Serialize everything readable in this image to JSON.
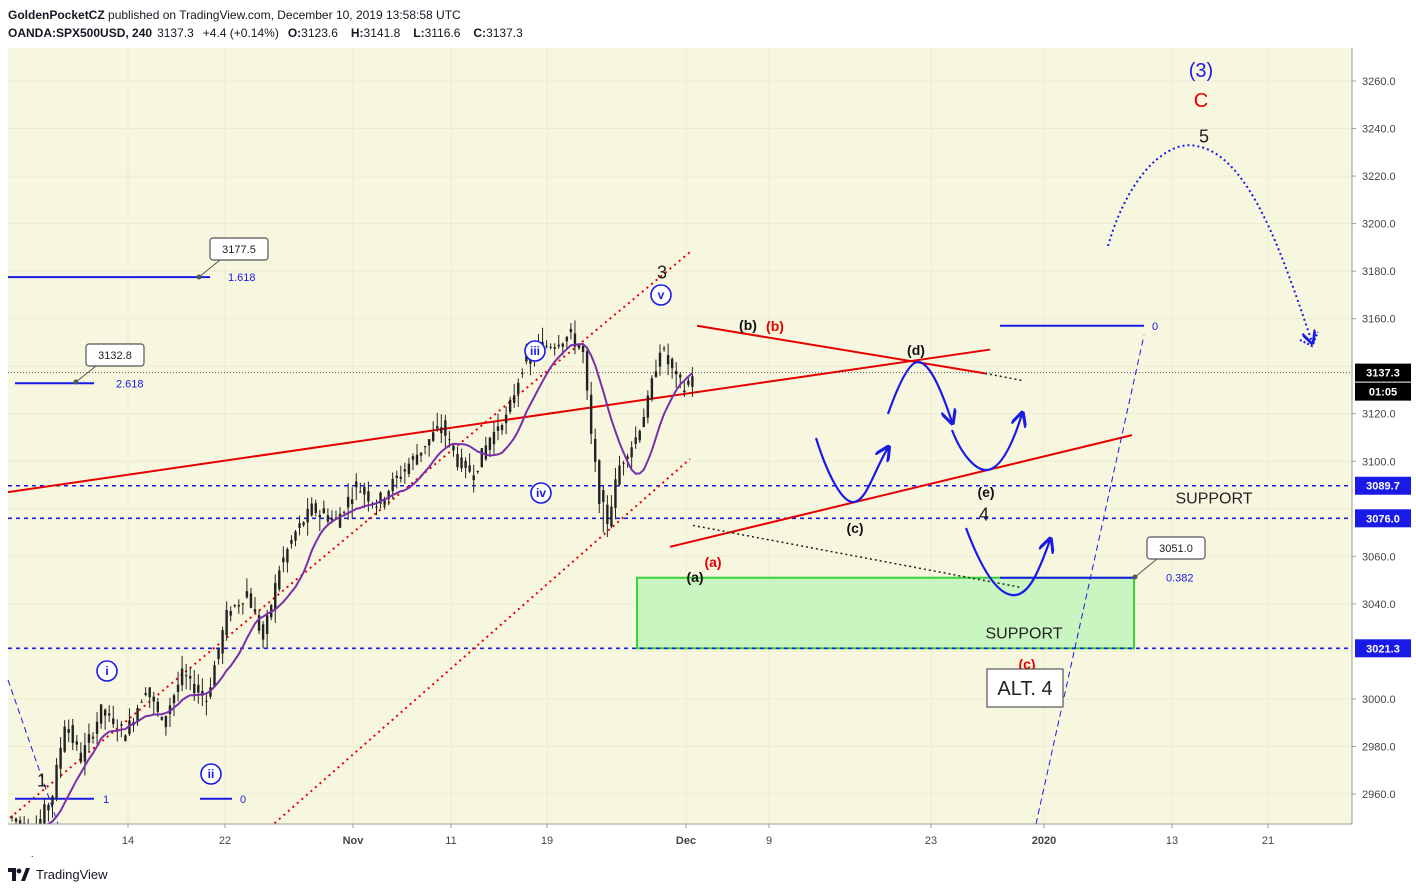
{
  "header": {
    "publisher": "GoldenPocketCZ",
    "published_text": "published on TradingView.com, December 10, 2019 13:58:58 UTC",
    "symbol": "OANDA:SPX500USD, 240",
    "last": "3137.3",
    "change": "+4.4 (+0.14%)",
    "open_label": "O:",
    "open": "3123.6",
    "high_label": "H:",
    "high": "3141.8",
    "low_label": "L:",
    "low": "3116.6",
    "close_label": "C:",
    "close": "3137.3"
  },
  "footer": {
    "brand": "TradingView",
    "logo": "tradingview-logo-icon"
  },
  "colors": {
    "background": "#f5f5dc",
    "wave_blue": "#1a1ae6",
    "red": "#e60000",
    "purple": "#7b2fa8",
    "support_fill": "#c8f5c0",
    "support_stroke": "#39d139"
  },
  "chart_data": {
    "type": "candlestick",
    "symbol": "OANDA:SPX500USD",
    "interval": "240",
    "ylim": [
      2945,
      3270
    ],
    "y_ticks": [
      2960,
      2980,
      3000,
      3020,
      3040,
      3060,
      3080,
      3100,
      3120,
      3140,
      3160,
      3180,
      3200,
      3220,
      3240,
      3260
    ],
    "y_tick_labels": [
      "2960.0",
      "2980.0",
      "3000.0",
      "",
      "3040.0",
      "3060.0",
      "",
      "3100.0",
      "3120.0",
      "",
      "3160.0",
      "3180.0",
      "3200.0",
      "3220.0",
      "3240.0",
      "3260.0"
    ],
    "x_ticks": [
      "14",
      "22",
      "Nov",
      "11",
      "19",
      "Dec",
      "9",
      "23",
      "2020",
      "13",
      "21"
    ],
    "price_tags": [
      {
        "value": 3137.3,
        "label": "3137.3",
        "style": "dark"
      },
      {
        "value": 3089.7,
        "label": "3089.7",
        "style": "blue"
      },
      {
        "value": 3076.0,
        "label": "3076.0",
        "style": "blue"
      },
      {
        "value": 3021.3,
        "label": "3021.3",
        "style": "blue"
      }
    ],
    "countdown": "01:05",
    "callouts": [
      {
        "label": "3177.5",
        "value": 3177.5
      },
      {
        "label": "3132.8",
        "value": 3132.8
      },
      {
        "label": "3051.0",
        "value": 3051.0
      }
    ],
    "fib_levels": [
      {
        "label": "1.618",
        "value": 3177.5
      },
      {
        "label": "2.618",
        "value": 3132.8
      },
      {
        "label": "0.382",
        "value": 3051.0
      },
      {
        "label": "0",
        "value": 3157.0
      },
      {
        "label": "1",
        "value": 2958.0
      },
      {
        "label": "0",
        "value": 2958.0
      }
    ],
    "horizontal_levels": [
      3089.7,
      3076.0,
      3021.3
    ],
    "support_zone": {
      "from": 3021.3,
      "to": 3051.0,
      "label": "SUPPORT"
    },
    "support_label_2": "SUPPORT",
    "wave_labels": [
      {
        "text": "(3)"
      },
      {
        "text": "C"
      },
      {
        "text": "5"
      },
      {
        "text": "3"
      },
      {
        "text": "v"
      },
      {
        "text": "iii"
      },
      {
        "text": "iv"
      },
      {
        "text": "i"
      },
      {
        "text": "ii"
      },
      {
        "text": "1"
      },
      {
        "text": "(b)"
      },
      {
        "text": "(b)"
      },
      {
        "text": "(d)"
      },
      {
        "text": "(c)"
      },
      {
        "text": "(e)"
      },
      {
        "text": "4"
      },
      {
        "text": "(a)"
      },
      {
        "text": "(a)"
      },
      {
        "text": "(c)"
      },
      {
        "text": "ALT. 4"
      }
    ],
    "candles_summary": {
      "anchors": [
        [
          0,
          2950
        ],
        [
          5,
          2942
        ],
        [
          10,
          2960
        ],
        [
          13,
          2990
        ],
        [
          17,
          2975
        ],
        [
          22,
          2995
        ],
        [
          28,
          2985
        ],
        [
          33,
          3005
        ],
        [
          37,
          2990
        ],
        [
          42,
          3010
        ],
        [
          48,
          3000
        ],
        [
          53,
          3035
        ],
        [
          58,
          3045
        ],
        [
          62,
          3025
        ],
        [
          66,
          3055
        ],
        [
          70,
          3070
        ],
        [
          74,
          3080
        ],
        [
          80,
          3075
        ],
        [
          85,
          3090
        ],
        [
          90,
          3082
        ],
        [
          96,
          3095
        ],
        [
          101,
          3105
        ],
        [
          106,
          3115
        ],
        [
          110,
          3100
        ],
        [
          114,
          3095
        ],
        [
          118,
          3110
        ],
        [
          122,
          3118
        ],
        [
          126,
          3140
        ],
        [
          130,
          3148
        ],
        [
          134,
          3150
        ],
        [
          138,
          3153
        ],
        [
          141,
          3145
        ],
        [
          143,
          3110
        ],
        [
          145,
          3085
        ],
        [
          147,
          3075
        ],
        [
          150,
          3098
        ],
        [
          154,
          3110
        ],
        [
          157,
          3125
        ],
        [
          160,
          3148
        ],
        [
          163,
          3138
        ],
        [
          166,
          3130
        ],
        [
          168,
          3137
        ]
      ]
    }
  }
}
